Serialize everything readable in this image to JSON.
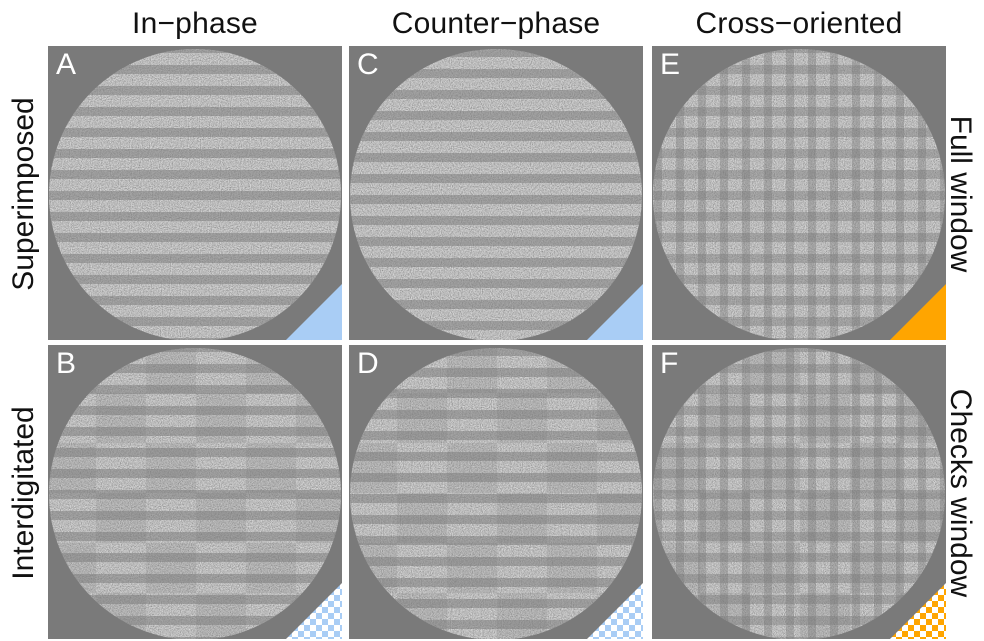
{
  "columns": [
    "In−phase",
    "Counter−phase",
    "Cross−oriented"
  ],
  "rows_left": [
    "Superimposed",
    "Interdigitated"
  ],
  "rows_right": [
    "Full window",
    "Checks window"
  ],
  "panels": [
    {
      "letter": "A",
      "row": 0,
      "col": 0,
      "pattern": "horizontal",
      "window": "full",
      "phase": "in"
    },
    {
      "letter": "B",
      "row": 1,
      "col": 0,
      "pattern": "horizontal",
      "window": "checks",
      "phase": "in"
    },
    {
      "letter": "C",
      "row": 0,
      "col": 1,
      "pattern": "horizontal",
      "window": "full",
      "phase": "counter"
    },
    {
      "letter": "D",
      "row": 1,
      "col": 1,
      "pattern": "horizontal",
      "window": "checks",
      "phase": "counter"
    },
    {
      "letter": "E",
      "row": 0,
      "col": 2,
      "pattern": "cross",
      "window": "full",
      "phase": "cross"
    },
    {
      "letter": "F",
      "row": 1,
      "col": 2,
      "pattern": "cross",
      "window": "checks",
      "phase": "cross"
    }
  ],
  "colors": {
    "background": "#7a7a7a",
    "border": "#ffffff",
    "blue_corner": "#a9cdf5",
    "orange_corner": "#ffa500",
    "text": "#111111",
    "letter": "#ffffff"
  }
}
